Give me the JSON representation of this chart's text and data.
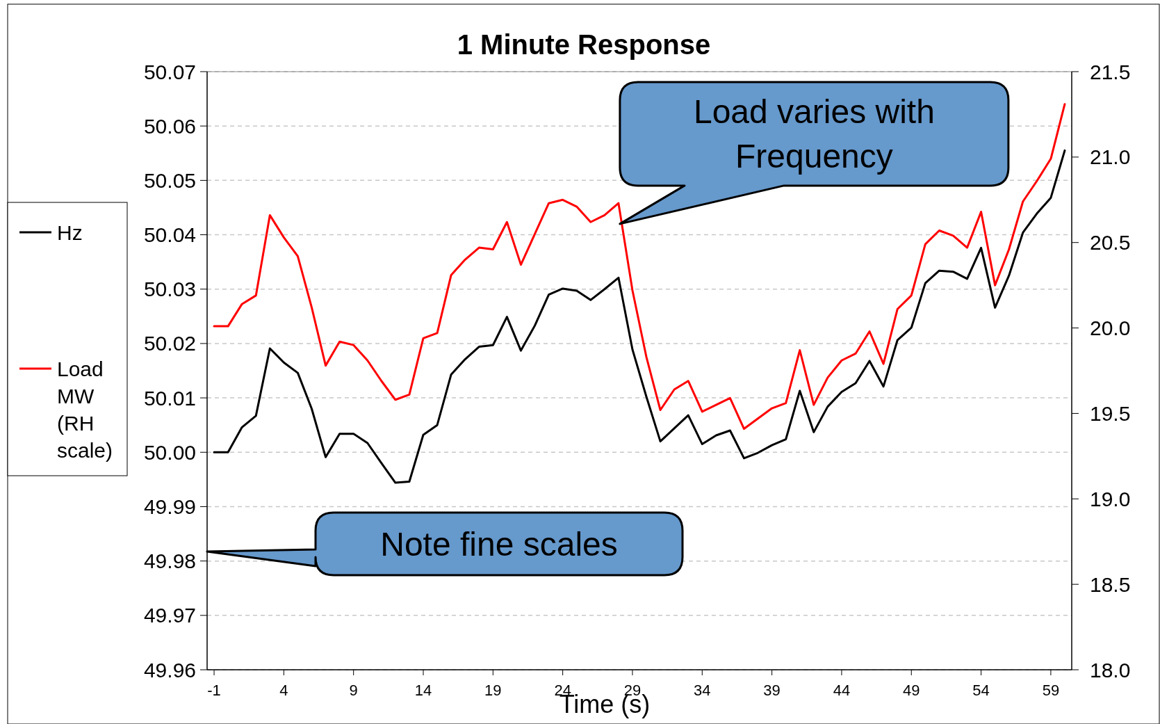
{
  "chart_data": {
    "type": "line",
    "title": "1 Minute Response",
    "xlabel": "Time (s)",
    "x": [
      -1,
      0,
      1,
      2,
      3,
      4,
      5,
      6,
      7,
      8,
      9,
      10,
      11,
      12,
      13,
      14,
      15,
      16,
      17,
      18,
      19,
      20,
      21,
      22,
      23,
      24,
      25,
      26,
      27,
      28,
      29,
      30,
      31,
      32,
      33,
      34,
      35,
      36,
      37,
      38,
      39,
      40,
      41,
      42,
      43,
      44,
      45,
      46,
      47,
      48,
      49,
      50,
      51,
      52,
      53,
      54,
      55,
      56,
      57,
      58,
      59,
      60
    ],
    "series": [
      {
        "name": "Hz",
        "color": "#000000",
        "values": [
          50.0,
          50.0,
          50.0046,
          50.0067,
          50.0191,
          50.0165,
          50.0146,
          50.008,
          49.9991,
          50.0034,
          50.0034,
          50.0017,
          49.998,
          49.9944,
          49.9946,
          50.0032,
          50.005,
          50.0143,
          50.0171,
          50.0194,
          50.0197,
          50.0249,
          50.0187,
          50.0233,
          50.029,
          50.0301,
          50.0297,
          50.028,
          50.03,
          50.0321,
          50.0189,
          50.0102,
          50.002,
          50.0044,
          50.0068,
          50.0015,
          50.0031,
          50.004,
          49.9989,
          49.9999,
          50.0013,
          50.0024,
          50.0113,
          50.0037,
          50.0084,
          50.0111,
          50.0127,
          50.0168,
          50.0121,
          50.0206,
          50.0229,
          50.0311,
          50.0334,
          50.0332,
          50.0319,
          50.0376,
          50.0266,
          50.0325,
          50.0404,
          50.0439,
          50.0468,
          50.0555
        ]
      },
      {
        "name": "Load MW (RH scale)",
        "color": "#ff0000",
        "axis": "y2",
        "values": [
          20.01,
          20.01,
          20.14,
          20.19,
          20.66,
          20.53,
          20.42,
          20.12,
          19.78,
          19.92,
          19.9,
          19.81,
          19.69,
          19.58,
          19.61,
          19.94,
          19.97,
          20.31,
          20.4,
          20.47,
          20.46,
          20.62,
          20.37,
          20.55,
          20.73,
          20.75,
          20.71,
          20.62,
          20.66,
          20.73,
          20.22,
          19.83,
          19.52,
          19.64,
          19.69,
          19.51,
          19.55,
          19.59,
          19.41,
          19.47,
          19.53,
          19.56,
          19.87,
          19.55,
          19.71,
          19.81,
          19.85,
          19.98,
          19.79,
          20.11,
          20.19,
          20.49,
          20.57,
          20.54,
          20.47,
          20.68,
          20.25,
          20.46,
          20.74,
          20.86,
          20.99,
          21.31
        ]
      }
    ],
    "xlim": [
      -1.5,
      60.5
    ],
    "xticks": [
      -1,
      4,
      9,
      14,
      19,
      24,
      29,
      34,
      39,
      44,
      49,
      54,
      59
    ],
    "ylim": [
      49.96,
      50.07
    ],
    "yticks": [
      49.96,
      49.97,
      49.98,
      49.99,
      {
        "value": 50,
        "label": "50.00"
      },
      50.01,
      50.02,
      50.03,
      50.04,
      50.05,
      50.06,
      50.07
    ],
    "y2lim": [
      18,
      21.5
    ],
    "y2ticks": [
      {
        "value": 18,
        "label": "18.0"
      },
      18.5,
      {
        "value": 19,
        "label": "19.0"
      },
      19.5,
      {
        "value": 20,
        "label": "20.0"
      },
      20.5,
      {
        "value": 21,
        "label": "21.0"
      },
      21.5
    ],
    "grid": "y",
    "legend": "left",
    "marker": "none",
    "line_style": "solid",
    "annotations": [
      {
        "text": "Load varies with Frequency",
        "x": 28.1,
        "y": 50.042
      },
      "Note fine scales"
    ]
  }
}
